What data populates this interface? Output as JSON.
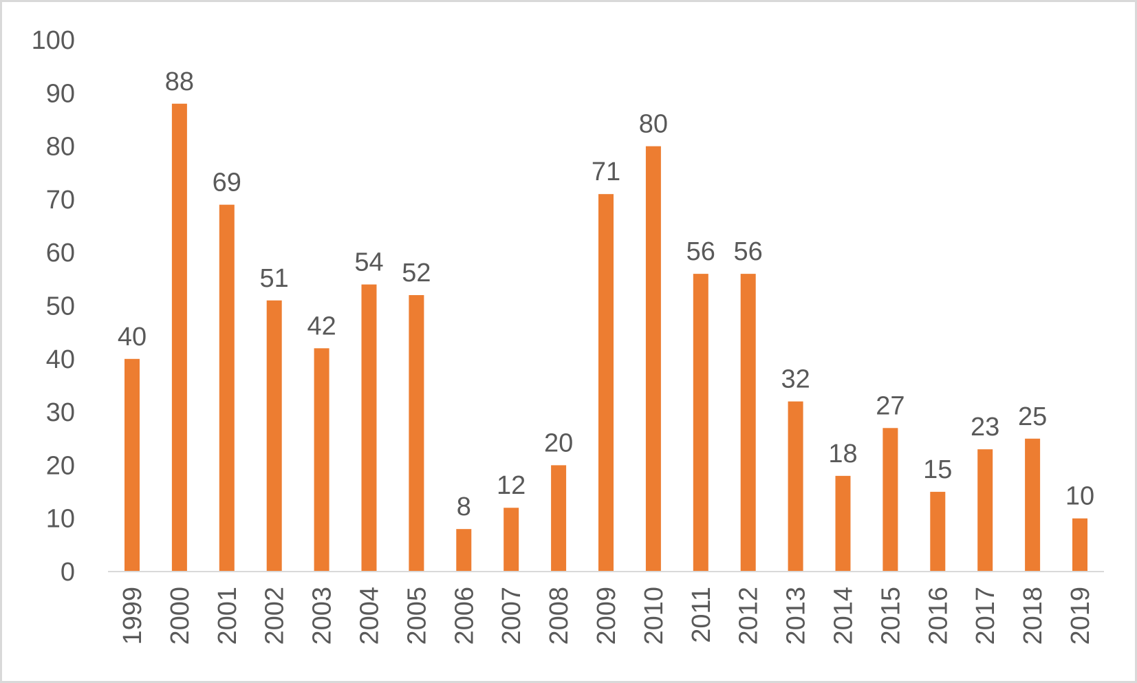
{
  "chart_data": {
    "type": "bar",
    "title": "",
    "xlabel": "",
    "ylabel": "",
    "ylim": [
      0,
      100
    ],
    "yticks": [
      0,
      10,
      20,
      30,
      40,
      50,
      60,
      70,
      80,
      90,
      100
    ],
    "categories": [
      "1999",
      "2000",
      "2001",
      "2002",
      "2003",
      "2004",
      "2005",
      "2006",
      "2007",
      "2008",
      "2009",
      "2010",
      "2011",
      "2012",
      "2013",
      "2014",
      "2015",
      "2016",
      "2017",
      "2018",
      "2019"
    ],
    "values": [
      40,
      88,
      69,
      51,
      42,
      54,
      52,
      8,
      12,
      20,
      71,
      80,
      56,
      56,
      32,
      18,
      27,
      15,
      23,
      25,
      10
    ],
    "bar_color": "#ED7D31",
    "data_labels": true,
    "grid": false,
    "legend": "none"
  }
}
